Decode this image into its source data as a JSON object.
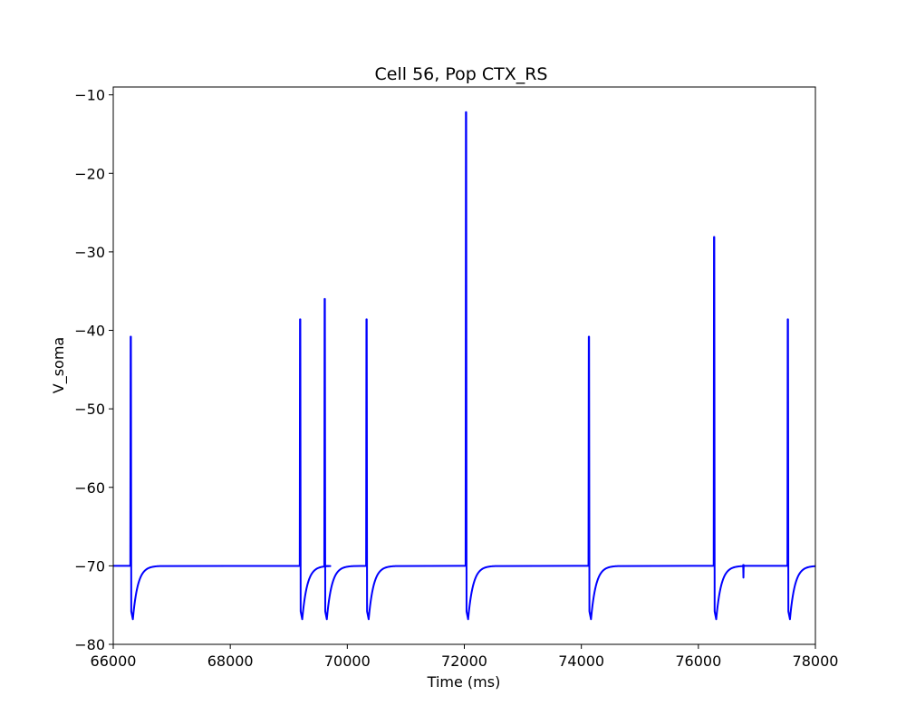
{
  "chart_data": {
    "type": "line",
    "title": "Cell 56, Pop CTX_RS",
    "xlabel": "Time (ms)",
    "ylabel": "V_soma",
    "xlim": [
      66000,
      78000
    ],
    "ylim": [
      -80,
      -9
    ],
    "xticks": [
      66000,
      68000,
      70000,
      72000,
      74000,
      76000,
      78000
    ],
    "xtick_labels": [
      "66000",
      "68000",
      "70000",
      "72000",
      "74000",
      "76000",
      "78000"
    ],
    "yticks": [
      -80,
      -70,
      -60,
      -50,
      -40,
      -30,
      -20,
      -10
    ],
    "ytick_labels": [
      "−80",
      "−70",
      "−60",
      "−50",
      "−40",
      "−30",
      "−20",
      "−10"
    ],
    "grid": false,
    "line_color": "#0000ff",
    "rest_potential": -70,
    "series": [
      {
        "name": "",
        "spikes": [
          {
            "t": 66300,
            "peak": -40.8,
            "min": -76.8
          },
          {
            "t": 69195,
            "peak": -38.6,
            "min": -76.8
          },
          {
            "t": 69615,
            "peak": -36.0,
            "min": -76.8
          },
          {
            "t": 70330,
            "peak": -38.6,
            "min": -76.8
          },
          {
            "t": 72030,
            "peak": -12.2,
            "min": -76.8
          },
          {
            "t": 74130,
            "peak": -40.8,
            "min": -76.8
          },
          {
            "t": 76270,
            "peak": -28.1,
            "min": -76.8
          },
          {
            "t": 77530,
            "peak": -38.6,
            "min": -76.8
          }
        ],
        "subthreshold_events": [
          {
            "t": 76770,
            "min": -71.5,
            "max": -69.9
          }
        ]
      }
    ]
  }
}
